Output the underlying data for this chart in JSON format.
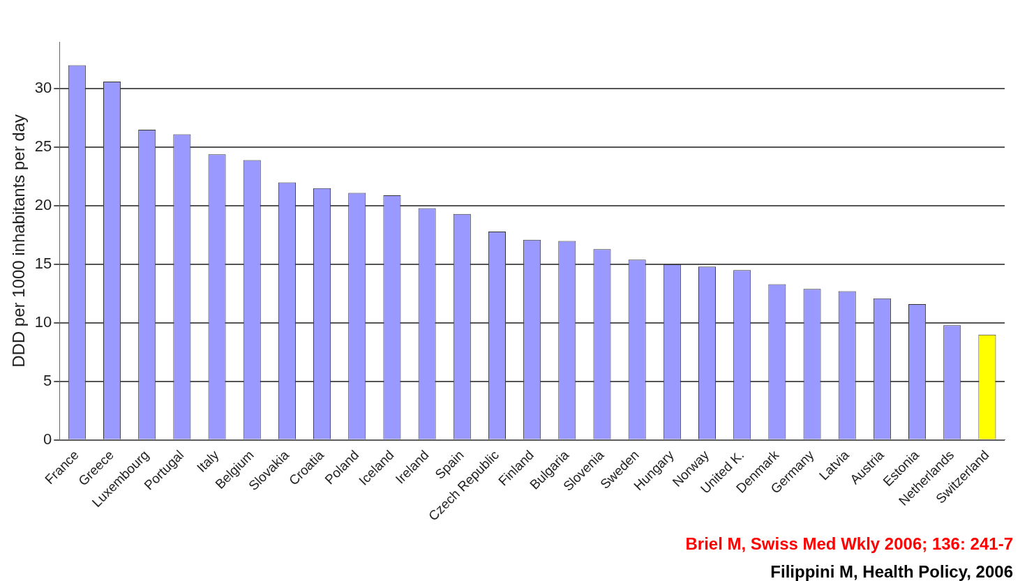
{
  "chart_data": {
    "type": "bar",
    "ylabel": "DDD per 1000 inhabitants per day",
    "categories": [
      "France",
      "Greece",
      "Luxembourg",
      "Portugal",
      "Italy",
      "Belgium",
      "Slovakia",
      "Croatia",
      "Poland",
      "Iceland",
      "Ireland",
      "Spain",
      "Czech Republic",
      "Finland",
      "Bulgaria",
      "Slovenia",
      "Sweden",
      "Hungary",
      "Norway",
      "United K.",
      "Denmark",
      "Germany",
      "Latvia",
      "Austria",
      "Estonia",
      "Netherlands",
      "Switzerland"
    ],
    "values": [
      32.0,
      30.6,
      26.5,
      26.1,
      24.4,
      23.9,
      22.0,
      21.5,
      21.1,
      20.9,
      19.8,
      19.3,
      17.8,
      17.1,
      17.0,
      16.3,
      15.4,
      15.0,
      14.8,
      14.5,
      13.3,
      12.9,
      12.7,
      12.1,
      11.6,
      9.8,
      9.0
    ],
    "colors": [
      "#9999ff",
      "#9999ff",
      "#9999ff",
      "#9999ff",
      "#9999ff",
      "#9999ff",
      "#9999ff",
      "#9999ff",
      "#9999ff",
      "#9999ff",
      "#9999ff",
      "#9999ff",
      "#9999ff",
      "#9999ff",
      "#9999ff",
      "#9999ff",
      "#9999ff",
      "#9999ff",
      "#9999ff",
      "#9999ff",
      "#9999ff",
      "#9999ff",
      "#9999ff",
      "#9999ff",
      "#9999ff",
      "#9999ff",
      "#ffff00"
    ],
    "ylim": [
      0,
      34
    ],
    "yticks": [
      0,
      5,
      10,
      15,
      20,
      25,
      30
    ],
    "grid": "y",
    "legend": false,
    "annotations": [
      "Briel M, Swiss Med Wkly 2006; 136: 241-7",
      "Filippini M, Health Policy, 2006"
    ]
  }
}
